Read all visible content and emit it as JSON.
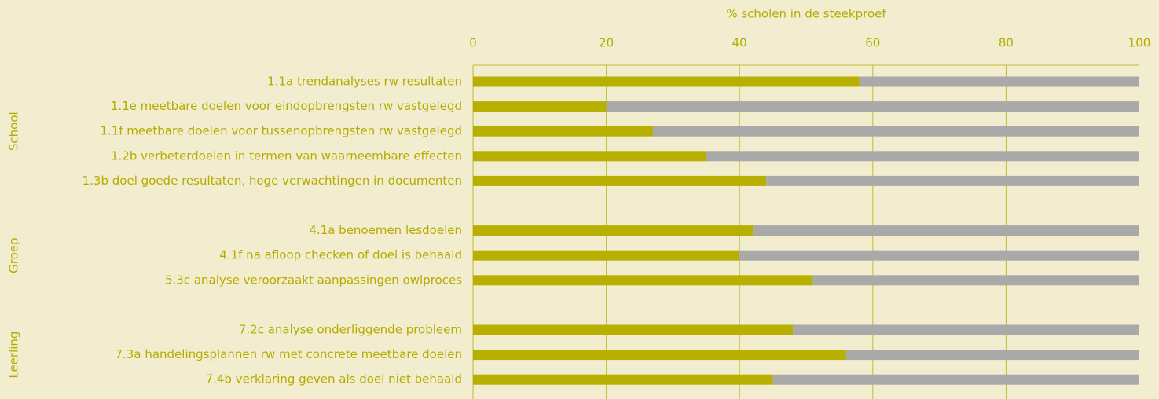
{
  "chart_data": {
    "type": "stacked-barh",
    "xlabel": "% scholen in de steekproef",
    "groups": [
      "School",
      "Groep",
      "Leerling"
    ],
    "categories": [
      "1.1a trendanalyses rw resultaten",
      "1.1e meetbare doelen voor  eindopbrengsten rw vastgelegd",
      "1.1f meetbare doelen voor  tussenopbrengsten rw vastgelegd",
      "1.2b verbeterdoelen in termen van waarneembare effecten",
      "1.3b doel goede resultaten, hoge verwachtingen in documenten",
      "4.1a benoemen lesdoelen ",
      "4.1f na afloop checken of doel is behaald",
      "5.3c analyse veroorzaakt aanpassingen owlproces",
      "7.2c analyse onderliggende probleem ",
      "7.3a handelingsplannen rw met concrete meetbare doelen",
      "7.4b verklaring geven als doel niet behaald"
    ],
    "series": [
      {
        "color": "#b8b000",
        "values": [
          58,
          20,
          27,
          35,
          44,
          42,
          40,
          51,
          48,
          56,
          45
        ]
      },
      {
        "color": "#a9a9a9",
        "values": [
          42,
          80,
          73,
          65,
          56,
          58,
          60,
          49,
          52,
          44,
          55
        ]
      }
    ],
    "xlim": [
      0,
      100
    ],
    "xticks": [
      0,
      20,
      40,
      60,
      80,
      100
    ],
    "grid": true
  }
}
